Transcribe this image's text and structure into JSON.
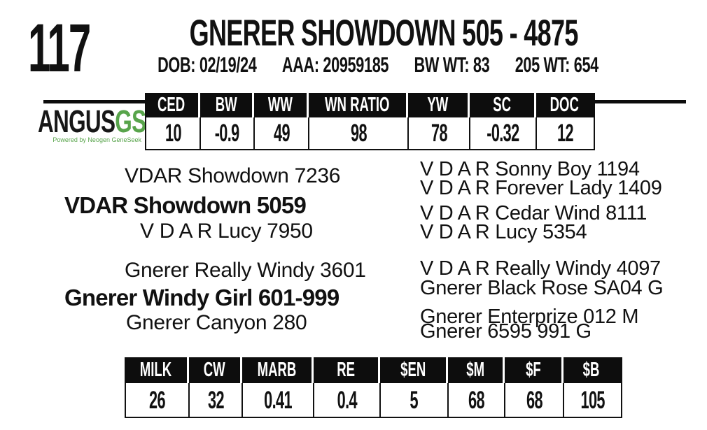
{
  "header": {
    "lot_number": "117",
    "title": "GNERER SHOWDOWN 505 - 4875",
    "info_items": [
      "DOB: 02/19/24",
      "AAA: 20959185",
      "BW WT: 83",
      "205 WT: 654"
    ]
  },
  "logo": {
    "brand": "ANGUS",
    "suffix": "GS",
    "tagline": "Powered by Neogen GeneSeek",
    "brand_color": "#171717",
    "accent_green": "#58a44b"
  },
  "epd_table": {
    "columns": [
      "CED",
      "BW",
      "WW",
      "WN RATIO",
      "YW",
      "SC",
      "DOC"
    ],
    "values": [
      "10",
      "-0.9",
      "49",
      "98",
      "78",
      "-0.32",
      "12"
    ]
  },
  "pedigree": {
    "sire_line": {
      "sire": "VDAR Showdown 7236",
      "name": "VDAR Showdown 5059",
      "dam": "V D A R Lucy 7950",
      "ancestors": [
        "V D A R Sonny Boy 1194",
        "V D A R Forever Lady 1409",
        "V D A R Cedar Wind 8111",
        "V D A R Lucy 5354"
      ]
    },
    "dam_line": {
      "sire": "Gnerer Really Windy 3601",
      "name": "Gnerer Windy Girl 601-999",
      "dam": "Gnerer Canyon 280",
      "ancestors": [
        "V D A R Really Windy 4097",
        "Gnerer Black Rose SA04 G",
        "Gnerer Enterprize 012 M",
        "Gnerer 6595 991 G"
      ]
    }
  },
  "value_table": {
    "columns": [
      "MILK",
      "CW",
      "MARB",
      "RE",
      "$EN",
      "$M",
      "$F",
      "$B"
    ],
    "values": [
      "26",
      "32",
      "0.41",
      "0.4",
      "5",
      "68",
      "68",
      "105"
    ]
  }
}
